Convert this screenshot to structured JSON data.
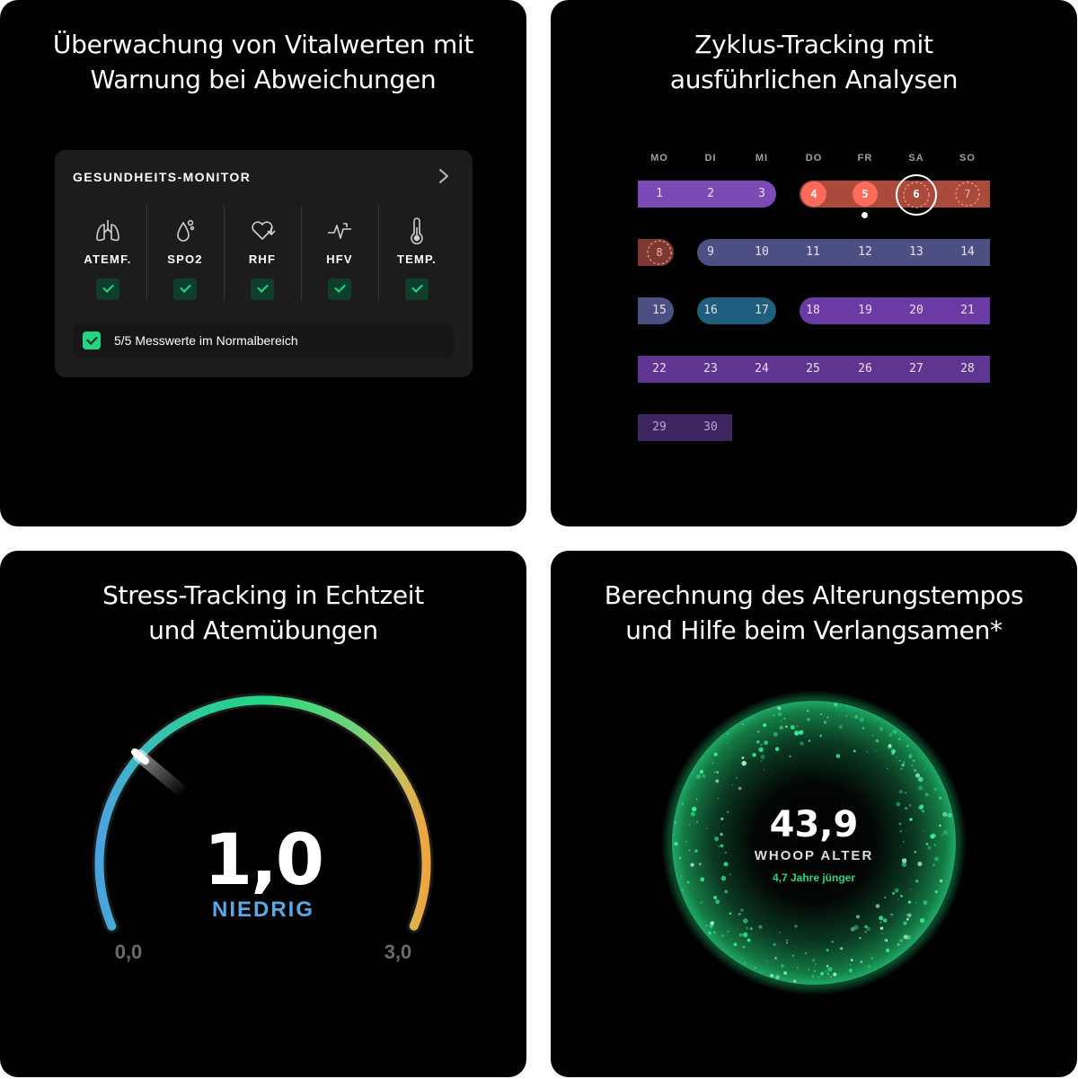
{
  "panel1": {
    "title_line1": "Überwachung von Vitalwerten mit",
    "title_line2": "Warnung bei Abweichungen",
    "card_title": "GESUNDHEITS-MONITOR",
    "chevron_icon": "chevron-right-icon",
    "metrics": [
      {
        "label": "ATEMF.",
        "icon": "lungs-icon",
        "status": "ok"
      },
      {
        "label": "SPO2",
        "icon": "oxygen-drop-icon",
        "status": "ok"
      },
      {
        "label": "RHF",
        "icon": "heart-rate-icon",
        "status": "ok"
      },
      {
        "label": "HFV",
        "icon": "heart-variability-icon",
        "status": "ok"
      },
      {
        "label": "TEMP.",
        "icon": "thermometer-icon",
        "status": "ok"
      }
    ],
    "summary": "5/5 Messwerte im Normalbereich",
    "colors": {
      "card_bg": "#1c1c1c",
      "check_accent": "#22d681"
    }
  },
  "panel2": {
    "title_line1": "Zyklus-Tracking mit",
    "title_line2": "ausführlichen Analysen",
    "weekdays": [
      "MO",
      "DI",
      "MI",
      "DO",
      "FR",
      "SA",
      "SO"
    ],
    "days": [
      "1",
      "2",
      "3",
      "4",
      "5",
      "6",
      "7",
      "8",
      "9",
      "10",
      "11",
      "12",
      "13",
      "14",
      "15",
      "16",
      "17",
      "18",
      "19",
      "20",
      "21",
      "22",
      "23",
      "24",
      "25",
      "26",
      "27",
      "28",
      "29",
      "30"
    ],
    "today": "6",
    "colors": {
      "menstrual": "#ff6b5a",
      "follicular": "#7a4bb5",
      "ovulation": "#5a5f91",
      "luteal": "#1f5e7d"
    }
  },
  "panel3": {
    "title_line1": "Stress-Tracking in Echtzeit",
    "title_line2": "und Atemübungen",
    "value": "1,0",
    "level": "NIEDRIG",
    "min": "0,0",
    "max": "3,0",
    "value_fraction": 0.333,
    "colors": {
      "low": "#4aa3e0",
      "mid": "#22d681",
      "high": "#f2a23c"
    }
  },
  "panel4": {
    "title_line1": "Berechnung des Alterungstempos",
    "title_line2": "und Hilfe beim Verlangsamen*",
    "age": "43,9",
    "label": "WHOOP ALTER",
    "subtext": "4,7 Jahre jünger",
    "colors": {
      "glow": "#1fd27e",
      "sub": "#29d67a"
    }
  }
}
